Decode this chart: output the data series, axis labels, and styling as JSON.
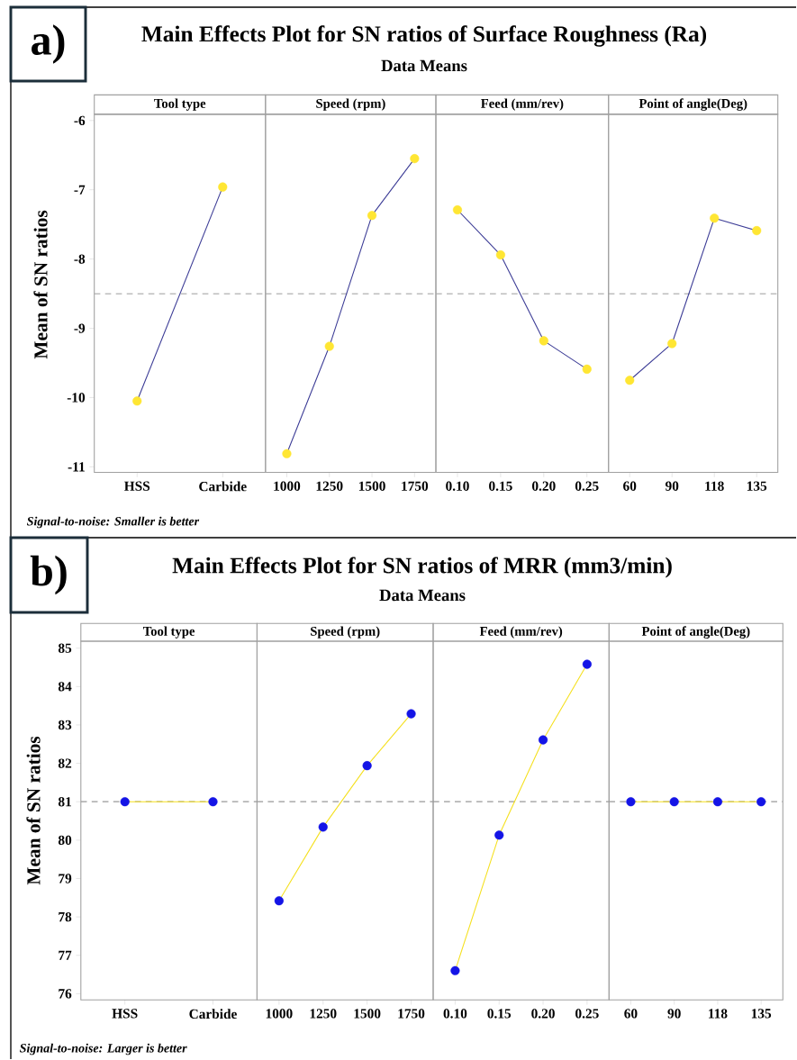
{
  "chart_data": [
    {
      "type": "line",
      "title": "Main Effects Plot for SN ratios of Surface Roughness (Ra)",
      "ylabel": "Mean of SN ratios",
      "xlabel": "Tool type",
      "annotations": [
        "a)",
        "Signal-to-noise: Smaller is better"
      ],
      "categories": [
        "HSS",
        "Carbide"
      ],
      "ylim": [
        -11.08,
        -5.91
      ],
      "yticks": [
        -11,
        -10,
        -9,
        -8,
        -7,
        -6
      ],
      "marker": "circle",
      "series": [
        {
          "color": "#3c3c96",
          "colors": [
            "#ffe633",
            "#ffe633"
          ],
          "values": [
            -10.05,
            -6.96
          ]
        }
      ],
      "ref_lines": [
        {
          "axis": "y",
          "value": -8.5,
          "color": "#a8a8a8",
          "line_style": "dashed"
        }
      ]
    },
    {
      "type": "line",
      "subtitle": "Data Means",
      "xlabel": "Speed (rpm)",
      "categories": [
        "1000",
        "1250",
        "1500",
        "1750"
      ],
      "ylim": [
        -11.08,
        -5.91
      ],
      "tick_labels": "x",
      "marker": "circle",
      "series": [
        {
          "color": "#3c3c96",
          "colors": [
            "#ffe633",
            "#ffe633",
            "#ffe633",
            "#ffe633"
          ],
          "values": [
            -10.81,
            -9.26,
            -7.37,
            -6.55
          ]
        }
      ],
      "ref_lines": [
        {
          "axis": "y",
          "value": -8.5,
          "color": "#a8a8a8",
          "line_style": "dashed"
        }
      ]
    },
    {
      "type": "line",
      "xlabel": "Feed (mm/rev)",
      "categories": [
        "0.10",
        "0.15",
        "0.20",
        "0.25"
      ],
      "ylim": [
        -11.08,
        -5.91
      ],
      "tick_labels": "x",
      "marker": "circle",
      "series": [
        {
          "color": "#3c3c96",
          "colors": [
            "#ffe633",
            "#ffe633",
            "#ffe633",
            "#ffe633"
          ],
          "values": [
            -7.29,
            -7.94,
            -9.18,
            -9.59
          ]
        }
      ],
      "ref_lines": [
        {
          "axis": "y",
          "value": -8.5,
          "color": "#a8a8a8",
          "line_style": "dashed"
        }
      ]
    },
    {
      "type": "line",
      "xlabel": "Point of angle(Deg)",
      "categories": [
        "60",
        "90",
        "118",
        "135"
      ],
      "ylim": [
        -11.08,
        -5.91
      ],
      "tick_labels": "x",
      "marker": "circle",
      "series": [
        {
          "color": "#3c3c96",
          "colors": [
            "#ffe633",
            "#ffe633",
            "#ffe633",
            "#ffe633"
          ],
          "values": [
            -9.75,
            -9.22,
            -7.41,
            -7.59
          ]
        }
      ],
      "ref_lines": [
        {
          "axis": "y",
          "value": -8.5,
          "color": "#a8a8a8",
          "line_style": "dashed"
        }
      ]
    },
    {
      "type": "line",
      "title": "Main Effects Plot for SN ratios of MRR (mm3/min)",
      "ylabel": "Mean of SN ratios",
      "xlabel": "Tool type",
      "annotations": [
        "b)",
        "Signal-to-noise: Larger is better"
      ],
      "categories": [
        "HSS",
        "Carbide"
      ],
      "ylim": [
        75.84,
        85.18
      ],
      "yticks": [
        76,
        77,
        78,
        79,
        80,
        81,
        82,
        83,
        84,
        85
      ],
      "marker": "circle",
      "series": [
        {
          "color": "#f5e01e",
          "colors": [
            "#1414e6",
            "#1414e6"
          ],
          "values": [
            81,
            81
          ]
        }
      ],
      "ref_lines": [
        {
          "axis": "y",
          "value": 81,
          "color": "#999999",
          "line_style": "dashed"
        }
      ]
    },
    {
      "type": "line",
      "subtitle": "Data Means",
      "xlabel": "Speed (rpm)",
      "categories": [
        "1000",
        "1250",
        "1500",
        "1750"
      ],
      "ylim": [
        75.84,
        85.18
      ],
      "tick_labels": "x",
      "marker": "circle",
      "series": [
        {
          "color": "#f5e01e",
          "colors": [
            "#1414e6",
            "#1414e6",
            "#1414e6",
            "#1414e6"
          ],
          "values": [
            78.42,
            80.34,
            81.94,
            83.29
          ]
        }
      ],
      "ref_lines": [
        {
          "axis": "y",
          "value": 81,
          "color": "#999999",
          "line_style": "dashed"
        }
      ]
    },
    {
      "type": "line",
      "xlabel": "Feed (mm/rev)",
      "categories": [
        "0.10",
        "0.15",
        "0.20",
        "0.25"
      ],
      "ylim": [
        75.84,
        85.18
      ],
      "tick_labels": "x",
      "marker": "circle",
      "series": [
        {
          "color": "#f5e01e",
          "colors": [
            "#1414e6",
            "#1414e6",
            "#1414e6",
            "#1414e6"
          ],
          "values": [
            76.6,
            80.13,
            82.61,
            84.58
          ]
        }
      ],
      "ref_lines": [
        {
          "axis": "y",
          "value": 81,
          "color": "#999999",
          "line_style": "dashed"
        }
      ]
    },
    {
      "type": "line",
      "xlabel": "Point of angle(Deg)",
      "categories": [
        "60",
        "90",
        "118",
        "135"
      ],
      "ylim": [
        75.84,
        85.18
      ],
      "tick_labels": "x",
      "marker": "circle",
      "series": [
        {
          "color": "#f5e01e",
          "colors": [
            "#1414e6",
            "#1414e6",
            "#1414e6",
            "#1414e6"
          ],
          "values": [
            81,
            81,
            81,
            81
          ]
        }
      ],
      "ref_lines": [
        {
          "axis": "y",
          "value": 81,
          "color": "#999999",
          "line_style": "dashed"
        }
      ]
    }
  ]
}
